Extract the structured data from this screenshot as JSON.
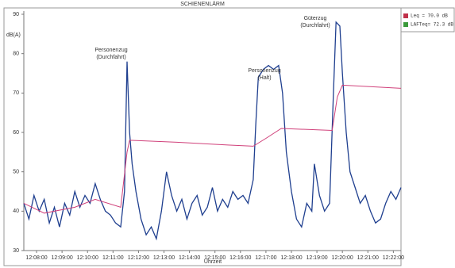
{
  "chart_data": {
    "type": "line",
    "title": "SCHIENENLÄRM",
    "ylabel": "dB(A)",
    "xlabel": "Uhrzeit",
    "xlim": [
      727.5,
      742.3
    ],
    "ylim": [
      30,
      90
    ],
    "yticks": [
      30,
      40,
      50,
      60,
      70,
      80,
      90
    ],
    "xticks": [
      {
        "value": 728,
        "label": "12:08:00"
      },
      {
        "value": 729,
        "label": "12:09:00"
      },
      {
        "value": 730,
        "label": "12:10:00"
      },
      {
        "value": 731,
        "label": "12:11:00"
      },
      {
        "value": 732,
        "label": "12:12:00"
      },
      {
        "value": 733,
        "label": "12:13:00"
      },
      {
        "value": 734,
        "label": "12:14:00"
      },
      {
        "value": 735,
        "label": "12:15:00"
      },
      {
        "value": 736,
        "label": "12:16:00"
      },
      {
        "value": 737,
        "label": "12:17:00"
      },
      {
        "value": 738,
        "label": "12:18:00"
      },
      {
        "value": 739,
        "label": "12:19:00"
      },
      {
        "value": 740,
        "label": "12:20:00"
      },
      {
        "value": 741,
        "label": "12:21:00"
      },
      {
        "value": 742,
        "label": "12:22:00"
      }
    ],
    "legend": [
      {
        "label": "Leq   = 70.0 dB",
        "color": "#c0304a"
      },
      {
        "label": "LAFTeq= 72.3 dB",
        "color": "#3a9a3a"
      }
    ],
    "annotations": [
      {
        "lines": [
          "Personenzug",
          "(Durchfahrt)"
        ]
      },
      {
        "lines": [
          "Personenzug",
          "(Halt)"
        ]
      },
      {
        "lines": [
          "Güterzug",
          "(Durchfahrt)"
        ]
      }
    ],
    "series": [
      {
        "color": "#1f3f8f",
        "x": [
          727.5,
          727.7,
          727.9,
          728.1,
          728.3,
          728.5,
          728.7,
          728.9,
          729.1,
          729.3,
          729.5,
          729.7,
          729.9,
          730.1,
          730.3,
          730.5,
          730.7,
          730.9,
          731.1,
          731.3,
          731.45,
          731.55,
          731.65,
          731.75,
          731.9,
          732.1,
          732.3,
          732.5,
          732.7,
          732.9,
          733.1,
          733.3,
          733.5,
          733.7,
          733.9,
          734.1,
          734.3,
          734.5,
          734.7,
          734.9,
          735.1,
          735.3,
          735.5,
          735.7,
          735.9,
          736.1,
          736.3,
          736.5,
          736.6,
          736.7,
          736.9,
          737.1,
          737.3,
          737.5,
          737.65,
          737.8,
          738.0,
          738.2,
          738.4,
          738.6,
          738.8,
          738.9,
          739.1,
          739.3,
          739.5,
          739.65,
          739.75,
          739.9,
          740.0,
          740.15,
          740.3,
          740.5,
          740.7,
          740.9,
          741.1,
          741.3,
          741.5,
          741.7,
          741.9,
          742.1,
          742.3
        ],
        "values": [
          42,
          38,
          44,
          40,
          43,
          37,
          41,
          36,
          42,
          39,
          45,
          41,
          44,
          42,
          47,
          43,
          40,
          39,
          37,
          36,
          45,
          78,
          60,
          52,
          45,
          38,
          34,
          36,
          33,
          40,
          50,
          44,
          40,
          43,
          38,
          42,
          44,
          39,
          41,
          46,
          40,
          43,
          41,
          45,
          43,
          44,
          42,
          48,
          62,
          74,
          76,
          77,
          76,
          77,
          70,
          55,
          45,
          38,
          36,
          42,
          40,
          52,
          44,
          40,
          42,
          70,
          88,
          87,
          75,
          60,
          50,
          46,
          42,
          44,
          40,
          37,
          38,
          42,
          45,
          43,
          46
        ]
      },
      {
        "color": "#d0407a",
        "x": [
          727.5,
          728.3,
          729.5,
          730.3,
          731.3,
          731.55,
          731.65,
          733.5,
          735.5,
          736.5,
          737.0,
          737.6,
          739.6,
          739.8,
          740.0,
          742.3
        ],
        "values": [
          42,
          39.5,
          41,
          43,
          41,
          55,
          58,
          57.5,
          56.8,
          56.5,
          58.5,
          61,
          60.5,
          69,
          72,
          71.2
        ]
      }
    ]
  }
}
